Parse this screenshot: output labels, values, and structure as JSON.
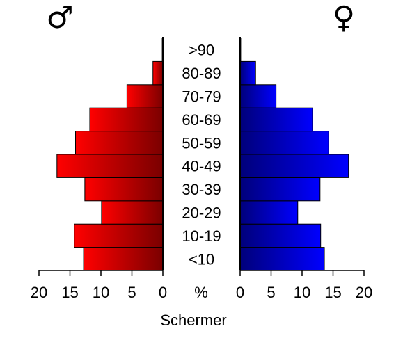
{
  "chart_data": {
    "type": "bar",
    "orientation": "horizontal-pyramid",
    "categories": [
      "<10",
      "10-19",
      "20-29",
      "30-39",
      "40-49",
      "50-59",
      "60-69",
      "70-79",
      "80-89",
      ">90"
    ],
    "series": [
      {
        "symbol": "♂",
        "side": "left",
        "color_light": "#ff0000",
        "color_dark": "#7a0000",
        "values": [
          12.8,
          14.3,
          9.9,
          12.6,
          17.1,
          14.1,
          11.8,
          5.8,
          1.6,
          0.1
        ]
      },
      {
        "symbol": "♀",
        "side": "right",
        "color_light": "#0000ff",
        "color_dark": "#00007a",
        "values": [
          13.6,
          13.0,
          9.3,
          12.9,
          17.5,
          14.3,
          11.7,
          5.8,
          2.5,
          0.1
        ]
      }
    ],
    "xlim": [
      0,
      20
    ],
    "ticks": [
      0,
      5,
      10,
      15,
      20
    ],
    "center_label": "%",
    "title": "",
    "xlabel": "Schermer"
  }
}
